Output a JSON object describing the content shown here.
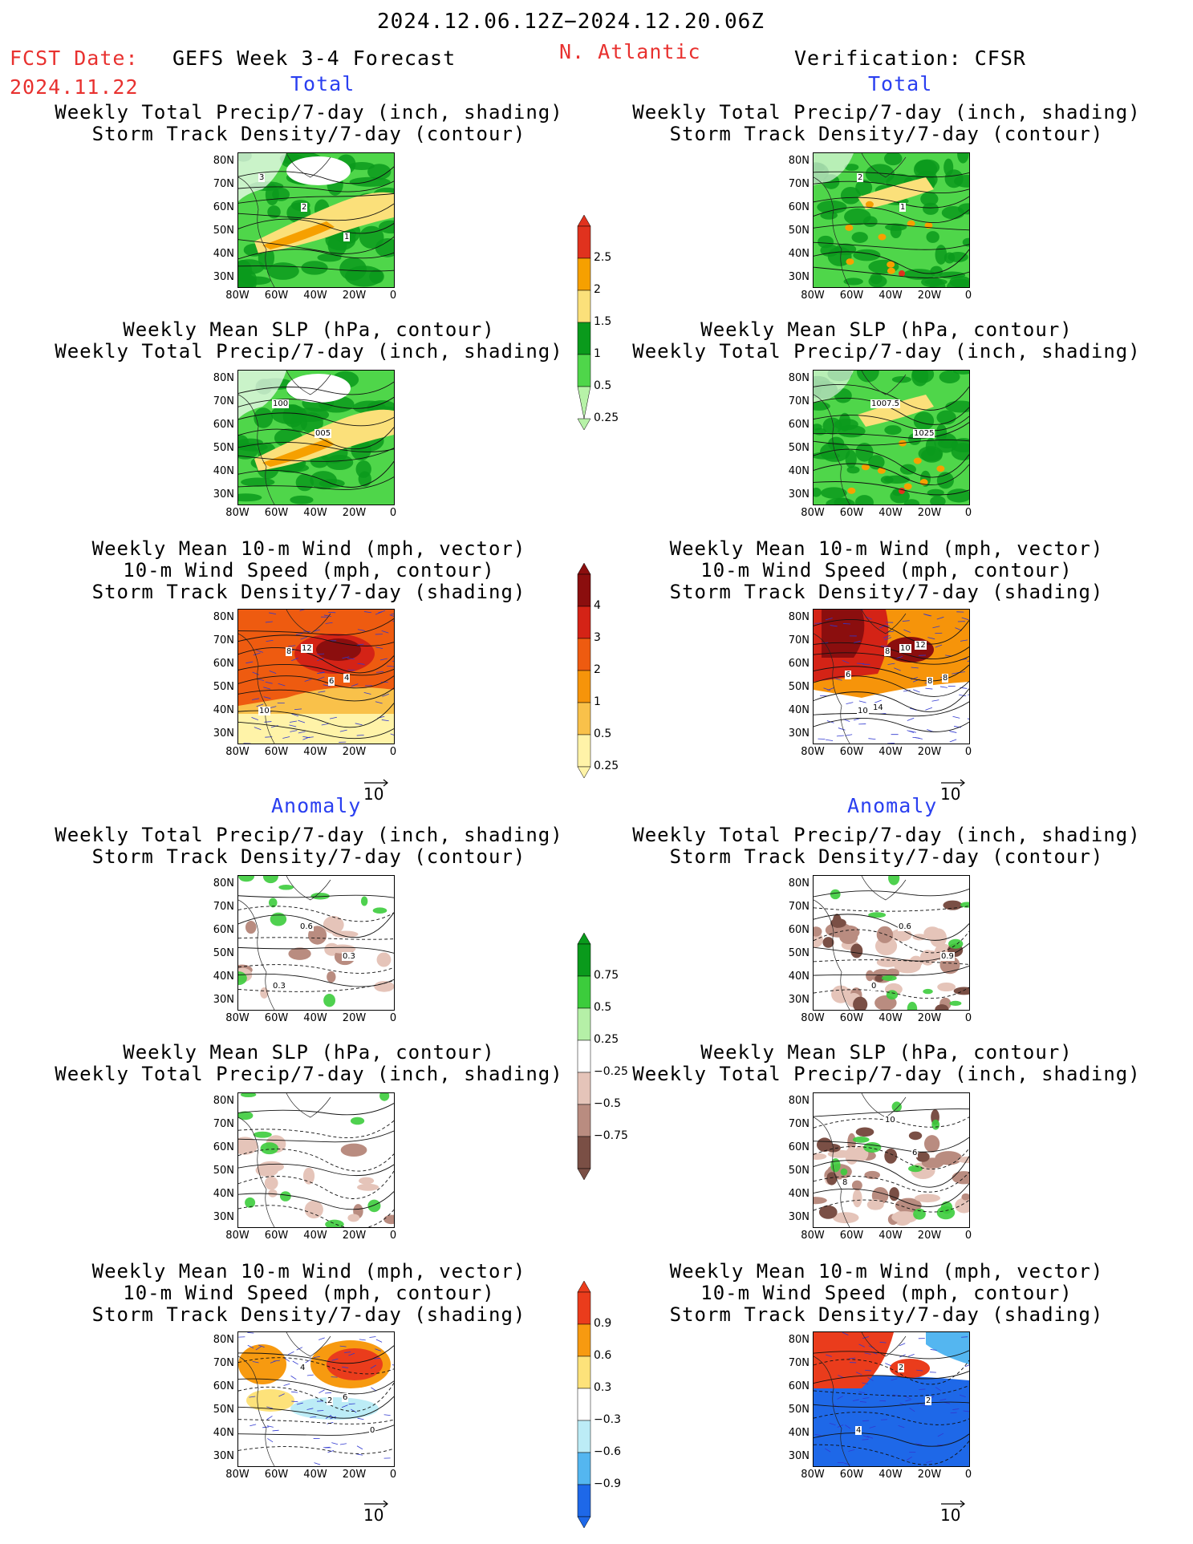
{
  "header": {
    "date_range": "2024.12.06.12Z−2024.12.20.06Z",
    "fcst_label": "FCST Date:",
    "fcst_date": "2024.11.22",
    "forecast_title": "GEFS Week 3-4 Forecast",
    "region": "N. Atlantic",
    "verification": "Verification: CFSR"
  },
  "sections": {
    "total": "Total",
    "anomaly": "Anomaly"
  },
  "panel_titles": {
    "precip_track": [
      "Weekly Total Precip/7-day (inch, shading)",
      "Storm Track Density/7-day (contour)"
    ],
    "slp_precip": [
      "Weekly Mean SLP (hPa, contour)",
      "Weekly Total Precip/7-day (inch, shading)"
    ],
    "wind_track": [
      "Weekly Mean 10-m Wind (mph, vector)",
      "10-m Wind Speed (mph, contour)",
      "Storm Track Density/7-day (shading)"
    ]
  },
  "axes": {
    "lat_ticks": [
      "80N",
      "70N",
      "60N",
      "50N",
      "40N",
      "30N"
    ],
    "lon_ticks": [
      "80W",
      "60W",
      "40W",
      "20W",
      "0"
    ]
  },
  "vector_ref": "10",
  "colorbars": {
    "precip_total": {
      "labels": [
        "2.5",
        "2",
        "1.5",
        "1",
        "0.5",
        "0.25"
      ],
      "colors": [
        "#e0321e",
        "#f6a000",
        "#fbe07a",
        "#0a9a1c",
        "#4fd64a",
        "#b7f2a8"
      ]
    },
    "track_total": {
      "labels": [
        "4",
        "3",
        "2",
        "1",
        "0.5",
        "0.25"
      ],
      "colors": [
        "#8b0e0e",
        "#d42316",
        "#ee5b10",
        "#f6940a",
        "#f9c14a",
        "#fff3a8"
      ]
    },
    "precip_anom": {
      "labels": [
        "0.75",
        "0.5",
        "0.25",
        "−0.25",
        "−0.5",
        "−0.75"
      ],
      "colors": [
        "#0a9a1c",
        "#3ccc3c",
        "#b5f0a7",
        "#ffffff",
        "#e5c4b9",
        "#b98c80",
        "#7a4f45"
      ]
    },
    "track_anom": {
      "labels": [
        "0.9",
        "0.6",
        "0.3",
        "−0.3",
        "−0.6",
        "−0.9"
      ],
      "colors": [
        "#ea3c1c",
        "#f79a10",
        "#fde27a",
        "#ffffff",
        "#bcecf6",
        "#54b6f0",
        "#1e68e8"
      ]
    }
  },
  "contour_labels": {
    "fc_total_precip_track": [
      "3",
      "2",
      "1"
    ],
    "fc_total_slp": [
      "100",
      "005"
    ],
    "fc_total_wind": [
      "8",
      "6",
      "10",
      "12",
      "4"
    ],
    "vf_total_precip_track": [
      "2",
      "1"
    ],
    "vf_total_slp": [
      "1007.5",
      "1025"
    ],
    "vf_total_wind": [
      "8",
      "8",
      "10",
      "10",
      "8",
      "14",
      "12",
      "6"
    ],
    "fc_anom_precip_track": [
      "0.6",
      "0.3",
      "0.3"
    ],
    "vf_anom_precip_track": [
      "0.6",
      "0.9",
      "0"
    ],
    "vf_anom_slp": [
      "6",
      "8",
      "10"
    ],
    "fc_anom_wind": [
      "2",
      "0",
      "4",
      "6"
    ],
    "vf_anom_wind": [
      "2",
      "4",
      "2"
    ]
  }
}
